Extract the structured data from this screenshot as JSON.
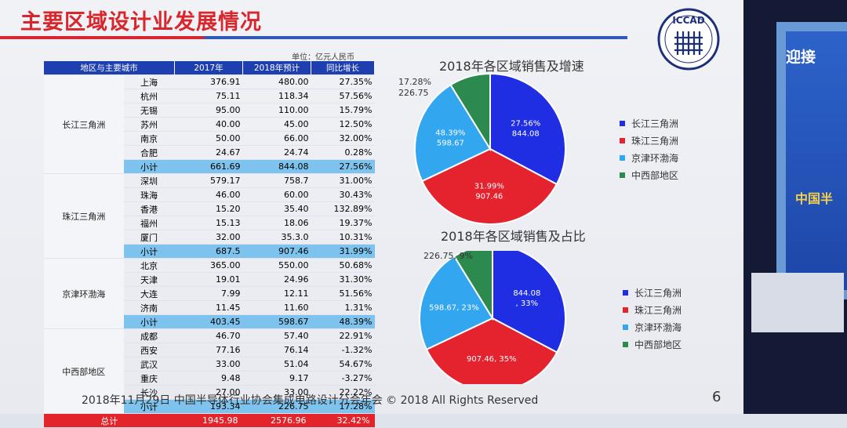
{
  "title": "主要区域设计业发展情况",
  "unit_note": "单位：亿元人民币",
  "table": {
    "headers": [
      "地区与主要城市",
      "2017年",
      "2018年预计",
      "同比增长"
    ],
    "rows": [
      {
        "region": "长江三角洲",
        "city": "上海",
        "y2017": "376.91",
        "y2018": "480.00",
        "growth": "27.35%"
      },
      {
        "region": "",
        "city": "杭州",
        "y2017": "75.11",
        "y2018": "118.34",
        "growth": "57.56%"
      },
      {
        "region": "",
        "city": "无锡",
        "y2017": "95.00",
        "y2018": "110.00",
        "growth": "15.79%"
      },
      {
        "region": "",
        "city": "苏州",
        "y2017": "40.00",
        "y2018": "45.00",
        "growth": "12.50%"
      },
      {
        "region": "",
        "city": "南京",
        "y2017": "50.00",
        "y2018": "66.00",
        "growth": "32.00%"
      },
      {
        "region": "",
        "city": "合肥",
        "y2017": "24.67",
        "y2018": "24.74",
        "growth": "0.28%"
      },
      {
        "region": "",
        "city": "小计",
        "y2017": "661.69",
        "y2018": "844.08",
        "growth": "27.56%",
        "subtotal": true
      },
      {
        "region": "珠江三角洲",
        "city": "深圳",
        "y2017": "579.17",
        "y2018": "758.7",
        "growth": "31.00%"
      },
      {
        "region": "",
        "city": "珠海",
        "y2017": "46.00",
        "y2018": "60.00",
        "growth": "30.43%"
      },
      {
        "region": "",
        "city": "香港",
        "y2017": "15.20",
        "y2018": "35.40",
        "growth": "132.89%"
      },
      {
        "region": "",
        "city": "福州",
        "y2017": "15.13",
        "y2018": "18.06",
        "growth": "19.37%"
      },
      {
        "region": "",
        "city": "厦门",
        "y2017": "32.00",
        "y2018": "35.3.0",
        "growth": "10.31%"
      },
      {
        "region": "",
        "city": "小计",
        "y2017": "687.5",
        "y2018": "907.46",
        "growth": "31.99%",
        "subtotal": true
      },
      {
        "region": "京津环渤海",
        "city": "北京",
        "y2017": "365.00",
        "y2018": "550.00",
        "growth": "50.68%"
      },
      {
        "region": "",
        "city": "天津",
        "y2017": "19.01",
        "y2018": "24.96",
        "growth": "31.30%"
      },
      {
        "region": "",
        "city": "大连",
        "y2017": "7.99",
        "y2018": "12.11",
        "growth": "51.56%"
      },
      {
        "region": "",
        "city": "济南",
        "y2017": "11.45",
        "y2018": "11.60",
        "growth": "1.31%"
      },
      {
        "region": "",
        "city": "小计",
        "y2017": "403.45",
        "y2018": "598.67",
        "growth": "48.39%",
        "subtotal": true
      },
      {
        "region": "中西部地区",
        "city": "成都",
        "y2017": "46.70",
        "y2018": "57.40",
        "growth": "22.91%"
      },
      {
        "region": "",
        "city": "西安",
        "y2017": "77.16",
        "y2018": "76.14",
        "growth": "-1.32%"
      },
      {
        "region": "",
        "city": "武汉",
        "y2017": "33.00",
        "y2018": "51.04",
        "growth": "54.67%"
      },
      {
        "region": "",
        "city": "重庆",
        "y2017": "9.48",
        "y2018": "9.17",
        "growth": "-3.27%"
      },
      {
        "region": "",
        "city": "长沙",
        "y2017": "27.00",
        "y2018": "33.00",
        "growth": "22.22%"
      },
      {
        "region": "",
        "city": "小计",
        "y2017": "193.34",
        "y2018": "226.75",
        "growth": "17.28%",
        "subtotal": true
      }
    ],
    "total": {
      "label": "总计",
      "y2017": "1945.98",
      "y2018": "2576.96",
      "growth": "32.42%"
    }
  },
  "chart_data": [
    {
      "type": "pie",
      "title": "2018年各区域销售及增速",
      "slices": [
        {
          "name": "长江三角洲",
          "value": 844.08,
          "label_lines": [
            "27.56%",
            "844.08"
          ],
          "color": "#1f2ee3"
        },
        {
          "name": "珠江三角洲",
          "value": 907.46,
          "label_lines": [
            "31.99%",
            "907.46"
          ],
          "color": "#e4232f"
        },
        {
          "name": "京津环渤海",
          "value": 598.67,
          "label_lines": [
            "48.39%",
            "598.67"
          ],
          "color": "#33a6f0"
        },
        {
          "name": "中西部地区",
          "value": 226.75,
          "label_lines": [
            "17.28%",
            "226.75"
          ],
          "color": "#2d8a4e",
          "outside": true
        }
      ],
      "legend_position": "right"
    },
    {
      "type": "pie",
      "title": "2018年各区域销售及占比",
      "slices": [
        {
          "name": "长江三角洲",
          "value": 844.08,
          "label_lines": [
            "844.08",
            ", 33%"
          ],
          "color": "#1f2ee3"
        },
        {
          "name": "珠江三角洲",
          "value": 907.46,
          "label_lines": [
            "907.46, 35%"
          ],
          "color": "#e4232f"
        },
        {
          "name": "京津环渤海",
          "value": 598.67,
          "label_lines": [
            "598.67, 23%"
          ],
          "color": "#33a6f0"
        },
        {
          "name": "中西部地区",
          "value": 226.75,
          "label_lines": [
            "226.75, 9%"
          ],
          "color": "#2d8a4e",
          "outside": true
        }
      ],
      "legend_position": "right"
    }
  ],
  "footer": "2018年11月29日  中国半导体行业协会集成电路设计分会年会 © 2018 All Rights Reserved",
  "page_number": "6",
  "logo_text": "ICCAD",
  "right_panel": {
    "heading": "迎接",
    "subtext": "中国半"
  }
}
